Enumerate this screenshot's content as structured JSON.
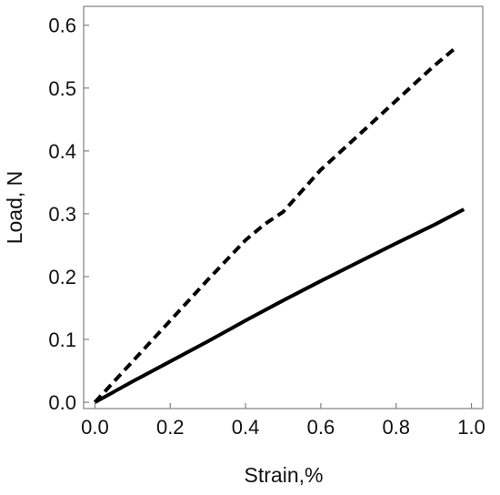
{
  "chart_data": {
    "type": "line",
    "title": "",
    "xlabel": "Strain,%",
    "ylabel": "Load, N",
    "xlim": [
      -0.03,
      1.03
    ],
    "ylim": [
      -0.01,
      0.63
    ],
    "x_ticks": [
      "0.0",
      "0.2",
      "0.4",
      "0.6",
      "0.8",
      "1.0"
    ],
    "y_ticks": [
      "0.0",
      "0.1",
      "0.2",
      "0.3",
      "0.4",
      "0.5",
      "0.6"
    ],
    "grid": false,
    "legend": "none",
    "series": [
      {
        "style": "dashed",
        "color": "#000000",
        "x": [
          0.0,
          0.1,
          0.2,
          0.3,
          0.4,
          0.45,
          0.5,
          0.6,
          0.7,
          0.8,
          0.9,
          0.96
        ],
        "y": [
          0.0,
          0.065,
          0.13,
          0.195,
          0.258,
          0.283,
          0.303,
          0.37,
          0.425,
          0.48,
          0.535,
          0.565
        ]
      },
      {
        "style": "solid",
        "color": "#000000",
        "x": [
          0.0,
          0.1,
          0.2,
          0.3,
          0.4,
          0.5,
          0.6,
          0.7,
          0.8,
          0.9,
          0.98
        ],
        "y": [
          0.0,
          0.033,
          0.065,
          0.097,
          0.13,
          0.162,
          0.193,
          0.223,
          0.253,
          0.282,
          0.307
        ]
      }
    ]
  }
}
